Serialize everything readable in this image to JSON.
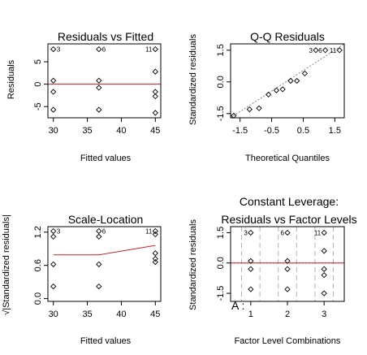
{
  "chart_data": [
    {
      "type": "scatter",
      "title": "Residuals vs Fitted",
      "xlabel": "Fitted values",
      "ylabel": "Residuals",
      "xlim": [
        29.2,
        45.8
      ],
      "ylim": [
        -7.5,
        9.0
      ],
      "xticks": [
        30,
        35,
        40,
        45
      ],
      "yticks": [
        -5,
        0,
        5
      ],
      "points": [
        {
          "x": 30,
          "y": 7.8
        },
        {
          "x": 30,
          "y": 0.8
        },
        {
          "x": 30,
          "y": -1.7
        },
        {
          "x": 30,
          "y": -5.7
        },
        {
          "x": 36.7,
          "y": 7.8
        },
        {
          "x": 36.7,
          "y": 0.8
        },
        {
          "x": 36.7,
          "y": -0.8
        },
        {
          "x": 36.7,
          "y": -5.7
        },
        {
          "x": 45,
          "y": 7.8
        },
        {
          "x": 45,
          "y": 2.8
        },
        {
          "x": 45,
          "y": -1.7
        },
        {
          "x": 45,
          "y": -2.7
        },
        {
          "x": 45,
          "y": -6.4
        }
      ],
      "point_labels": [
        {
          "text": "3",
          "x": 30,
          "y": 7.8,
          "side": "right"
        },
        {
          "text": "6",
          "x": 36.7,
          "y": 7.8,
          "side": "right"
        },
        {
          "text": "11",
          "x": 45,
          "y": 7.8,
          "side": "left"
        }
      ],
      "reference_line": {
        "y": 0,
        "style": "dotted",
        "color": "#808080"
      },
      "smooth_line": {
        "x": [
          29.2,
          45.8
        ],
        "y": [
          0,
          0
        ],
        "color": "#d02020"
      }
    },
    {
      "type": "scatter",
      "title": "Q-Q Residuals",
      "xlabel": "Theoretical Quantiles",
      "ylabel": "Standardized residuals",
      "xlim": [
        -1.8,
        1.8
      ],
      "ylim": [
        -1.7,
        1.8
      ],
      "xticks": [
        -1.5,
        -0.5,
        0.5,
        1.5
      ],
      "yticks": [
        -1.5,
        0.0,
        1.5
      ],
      "points": [
        {
          "x": -1.7,
          "y": -1.6
        },
        {
          "x": -1.2,
          "y": -1.3
        },
        {
          "x": -0.9,
          "y": -1.25
        },
        {
          "x": -0.6,
          "y": -0.6
        },
        {
          "x": -0.35,
          "y": -0.4
        },
        {
          "x": -0.15,
          "y": -0.35
        },
        {
          "x": 0.1,
          "y": 0.05
        },
        {
          "x": 0.3,
          "y": 0.05
        },
        {
          "x": 0.55,
          "y": 0.4
        },
        {
          "x": 0.9,
          "y": 1.5
        },
        {
          "x": 1.2,
          "y": 1.5
        },
        {
          "x": 1.65,
          "y": 1.5
        }
      ],
      "point_labels": [
        {
          "text": "3",
          "x": 0.9,
          "y": 1.5,
          "side": "left"
        },
        {
          "text": "6",
          "x": 1.2,
          "y": 1.5,
          "side": "left"
        },
        {
          "text": "11",
          "x": 1.65,
          "y": 1.5,
          "side": "left"
        }
      ],
      "reference_line": {
        "from": [
          -1.8,
          -1.7
        ],
        "to": [
          1.8,
          1.8
        ],
        "style": "dotted",
        "color": "#808080"
      }
    },
    {
      "type": "scatter",
      "title": "Scale-Location",
      "xlabel": "Fitted values",
      "ylabel": "√|Standardized residuals|",
      "xlim": [
        29.2,
        45.8
      ],
      "ylim": [
        -0.05,
        1.3
      ],
      "xticks": [
        30,
        35,
        40,
        45
      ],
      "yticks": [
        0.0,
        0.6,
        1.2
      ],
      "points": [
        {
          "x": 30,
          "y": 1.22
        },
        {
          "x": 30,
          "y": 1.12
        },
        {
          "x": 30,
          "y": 0.62
        },
        {
          "x": 30,
          "y": 0.22
        },
        {
          "x": 36.7,
          "y": 1.22
        },
        {
          "x": 36.7,
          "y": 1.12
        },
        {
          "x": 36.7,
          "y": 0.62
        },
        {
          "x": 36.7,
          "y": 0.22
        },
        {
          "x": 45,
          "y": 1.22
        },
        {
          "x": 45,
          "y": 1.16
        },
        {
          "x": 45,
          "y": 0.82
        },
        {
          "x": 45,
          "y": 0.72
        },
        {
          "x": 45,
          "y": 0.66
        }
      ],
      "point_labels": [
        {
          "text": "3",
          "x": 30,
          "y": 1.22,
          "side": "right"
        },
        {
          "text": "6",
          "x": 36.7,
          "y": 1.22,
          "side": "right"
        },
        {
          "text": "11",
          "x": 45,
          "y": 1.22,
          "side": "left"
        }
      ],
      "smooth_line": {
        "x": [
          30,
          36.7,
          45
        ],
        "y": [
          0.79,
          0.79,
          0.96
        ],
        "color": "#d02020"
      }
    },
    {
      "type": "scatter",
      "title": "Constant Leverage:",
      "subtitle": "Residuals vs Factor Levels",
      "xlabel": "Factor Level Combinations",
      "ylabel": "Standardized residuals",
      "factor_label": "A :",
      "xlim": [
        0.45,
        3.55
      ],
      "ylim": [
        -1.9,
        1.8
      ],
      "xticks": [
        1,
        2,
        3
      ],
      "yticks": [
        -1.5,
        0.0,
        1.5
      ],
      "points": [
        {
          "x": 1,
          "y": 1.5
        },
        {
          "x": 1,
          "y": 0.1
        },
        {
          "x": 1,
          "y": -0.3
        },
        {
          "x": 1,
          "y": -1.3
        },
        {
          "x": 2,
          "y": 1.5
        },
        {
          "x": 2,
          "y": 0.1
        },
        {
          "x": 2,
          "y": -0.3
        },
        {
          "x": 2,
          "y": -1.3
        },
        {
          "x": 3,
          "y": 1.5
        },
        {
          "x": 3,
          "y": 0.6
        },
        {
          "x": 3,
          "y": -0.3
        },
        {
          "x": 3,
          "y": -0.6
        },
        {
          "x": 3,
          "y": -1.5
        }
      ],
      "point_labels": [
        {
          "text": "3",
          "x": 1,
          "y": 1.5,
          "side": "left"
        },
        {
          "text": "6",
          "x": 2,
          "y": 1.5,
          "side": "left"
        },
        {
          "text": "11",
          "x": 3,
          "y": 1.5,
          "side": "left"
        }
      ],
      "vertical_grid": [
        0.75,
        1.25,
        1.75,
        2.25,
        2.75,
        3.25
      ],
      "reference_line": {
        "y": 0,
        "style": "dotted",
        "color": "#808080"
      },
      "smooth_line": {
        "x": [
          0.45,
          3.55
        ],
        "y": [
          0,
          0
        ],
        "color": "#d02020"
      }
    }
  ]
}
